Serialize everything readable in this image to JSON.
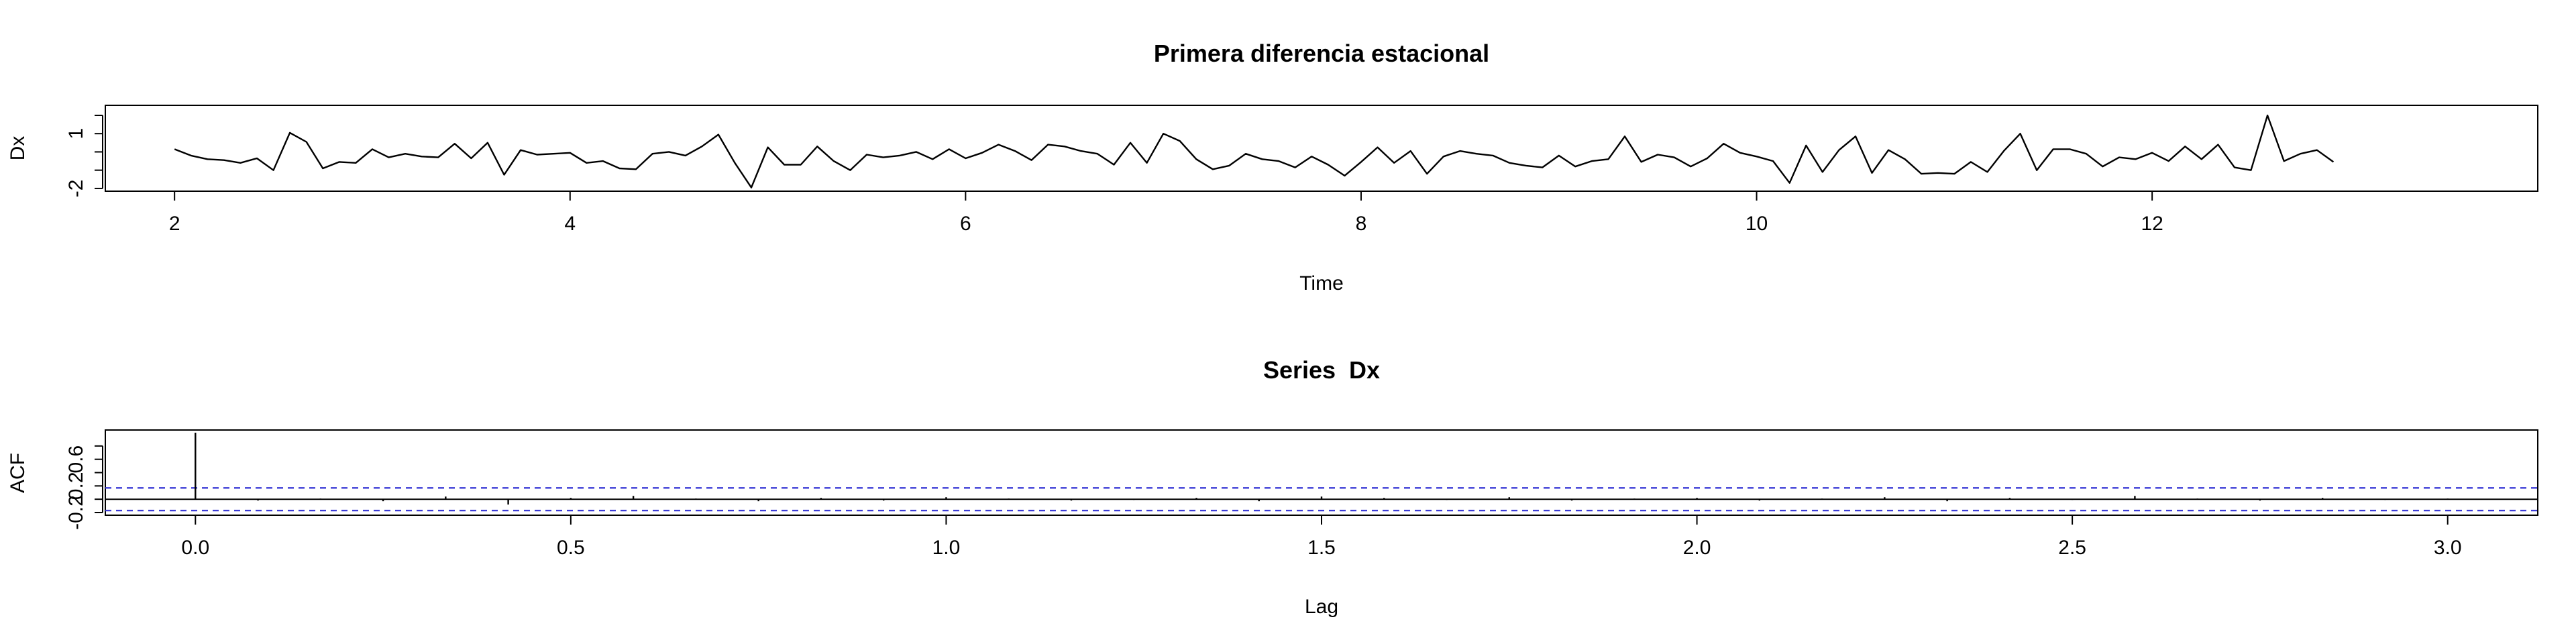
{
  "chart_data": [
    {
      "type": "line",
      "title": "Primera diferencia estacional",
      "xlabel": "Time",
      "ylabel": "Dx",
      "xlim": [
        1.65,
        13.95
      ],
      "ylim": [
        -2.15,
        2.55
      ],
      "x_ticks": [
        2,
        4,
        6,
        8,
        10,
        12
      ],
      "y_ticks": [
        -2,
        1
      ],
      "x_start": 2,
      "x_step": 0.08333333,
      "series": [
        {
          "color": "#000000",
          "values": [
            0.15,
            -0.2,
            -0.4,
            -0.45,
            -0.6,
            -0.35,
            -1.0,
            1.05,
            0.55,
            -0.9,
            -0.55,
            -0.6,
            0.15,
            -0.3,
            -0.1,
            -0.25,
            -0.3,
            0.45,
            -0.35,
            0.5,
            -1.25,
            0.1,
            -0.15,
            -0.1,
            -0.05,
            -0.6,
            -0.5,
            -0.9,
            -0.95,
            -0.1,
            0.0,
            -0.2,
            0.3,
            0.95,
            -0.6,
            -1.95,
            0.25,
            -0.7,
            -0.7,
            0.3,
            -0.5,
            -1.0,
            -0.15,
            -0.3,
            -0.2,
            0.0,
            -0.4,
            0.15,
            -0.35,
            -0.05,
            0.4,
            0.05,
            -0.45,
            0.4,
            0.3,
            0.05,
            -0.1,
            -0.7,
            0.5,
            -0.6,
            1.0,
            0.6,
            -0.4,
            -0.95,
            -0.75,
            -0.1,
            -0.4,
            -0.5,
            -0.85,
            -0.25,
            -0.7,
            -1.3,
            -0.55,
            0.25,
            -0.6,
            0.05,
            -1.2,
            -0.25,
            0.05,
            -0.1,
            -0.2,
            -0.6,
            -0.75,
            -0.85,
            -0.2,
            -0.8,
            -0.5,
            -0.4,
            0.85,
            -0.55,
            -0.15,
            -0.3,
            -0.8,
            -0.35,
            0.45,
            -0.05,
            -0.25,
            -0.5,
            -1.7,
            0.35,
            -1.1,
            0.1,
            0.85,
            -1.15,
            0.1,
            -0.4,
            -1.2,
            -1.15,
            -1.2,
            -0.55,
            -1.1,
            0.05,
            1.0,
            -1.0,
            0.15,
            0.15,
            -0.1,
            -0.8,
            -0.3,
            -0.4,
            -0.05,
            -0.5,
            0.3,
            -0.4,
            0.4,
            -0.85,
            -1.0,
            2.0,
            -0.5,
            -0.1,
            0.1,
            -0.55
          ]
        }
      ]
    },
    {
      "type": "bar",
      "title": "Series  Dx",
      "xlabel": "Lag",
      "ylabel": "ACF",
      "xlim": [
        -0.12,
        3.12
      ],
      "ylim": [
        -0.24,
        1.04
      ],
      "x_ticks": [
        "0.0",
        "0.5",
        "1.0",
        "1.5",
        "2.0",
        "2.5",
        "3.0"
      ],
      "y_ticks": [
        "-0.2",
        "0.2",
        "0.6"
      ],
      "y_minor_ticks": [
        0.0,
        0.4,
        0.8
      ],
      "lag_step": 0.08333333,
      "confidence_bound": 0.17,
      "confidence_color": "#3b3bd6",
      "series": [
        {
          "color": "#000000",
          "values": [
            1.0,
            -0.02,
            0.01,
            -0.03,
            0.04,
            -0.08,
            0.02,
            0.05,
            0.01,
            -0.03,
            0.02,
            -0.02,
            0.03,
            0.01,
            -0.02,
            -0.01,
            0.02,
            -0.03,
            0.04,
            0.02,
            -0.01,
            0.03,
            -0.02,
            0.01,
            0.02,
            -0.02,
            0.01,
            0.03,
            -0.03,
            0.02,
            -0.01,
            0.05,
            0.01,
            -0.02,
            0.02,
            -0.01,
            0.01
          ]
        }
      ]
    }
  ]
}
